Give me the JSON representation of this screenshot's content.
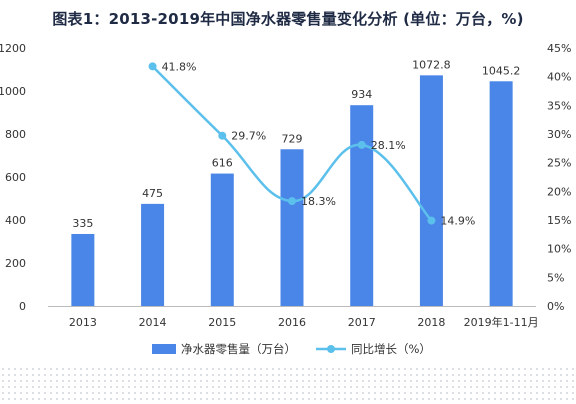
{
  "chart_title": "图表1：2013-2019年中国净水器零售量变化分析 (单位：万台，%)",
  "colors": {
    "bar": "#4a86e8",
    "line": "#5bc0eb",
    "grid": "#dddddd",
    "axis": "#bbbbbb"
  },
  "chart_data": {
    "type": "bar+line",
    "title": "图表1：2013-2019年中国净水器零售量变化分析 (单位：万台，%)",
    "categories": [
      "2013",
      "2014",
      "2015",
      "2016",
      "2017",
      "2018",
      "2019年1-11月"
    ],
    "y_left": {
      "lim": [
        0,
        1200
      ],
      "ticks": [
        "0",
        "200",
        "400",
        "600",
        "800",
        "1000",
        "1200"
      ]
    },
    "y_right": {
      "lim": [
        0,
        45
      ],
      "ticks": [
        "0%",
        "5%",
        "10%",
        "15%",
        "20%",
        "25%",
        "30%",
        "35%",
        "40%",
        "45%"
      ]
    },
    "series": [
      {
        "name": "净水器零售量（万台）",
        "type": "bar",
        "axis": "left",
        "values": [
          335,
          475,
          616,
          729,
          934,
          1072.8,
          1045.2
        ],
        "labels": [
          "335",
          "475",
          "616",
          "729",
          "934",
          "1072.8",
          "1045.2"
        ]
      },
      {
        "name": "同比增长（%）",
        "type": "line",
        "axis": "right",
        "values": [
          null,
          41.8,
          29.7,
          18.3,
          28.1,
          14.9,
          null
        ],
        "labels": [
          "",
          "41.8%",
          "29.7%",
          "18.3%",
          "28.1%",
          "14.9%",
          ""
        ]
      }
    ],
    "legend_position": "bottom",
    "grid": false
  }
}
